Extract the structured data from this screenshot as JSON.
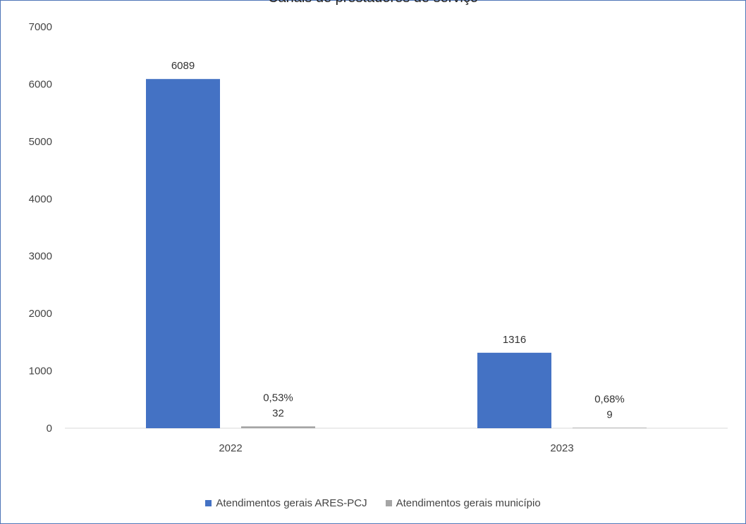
{
  "chart_data": {
    "type": "bar",
    "title": "Canais de prestadores de serviço",
    "categories": [
      "2022",
      "2023"
    ],
    "series": [
      {
        "name": "Atendimentos gerais ARES-PCJ",
        "values": [
          6089,
          1316
        ],
        "data_labels": [
          "6089",
          "1316"
        ],
        "color": "#4472c4"
      },
      {
        "name": "Atendimentos gerais município",
        "values": [
          32,
          9
        ],
        "data_labels": [
          [
            "0,53%",
            "32"
          ],
          [
            "0,68%",
            "9"
          ]
        ],
        "color": "#a5a5a5"
      }
    ],
    "yticks": [
      "0",
      "1000",
      "2000",
      "3000",
      "4000",
      "5000",
      "6000",
      "7000"
    ],
    "ylim": [
      0,
      7000
    ],
    "grid": false,
    "legend_position": "bottom"
  }
}
